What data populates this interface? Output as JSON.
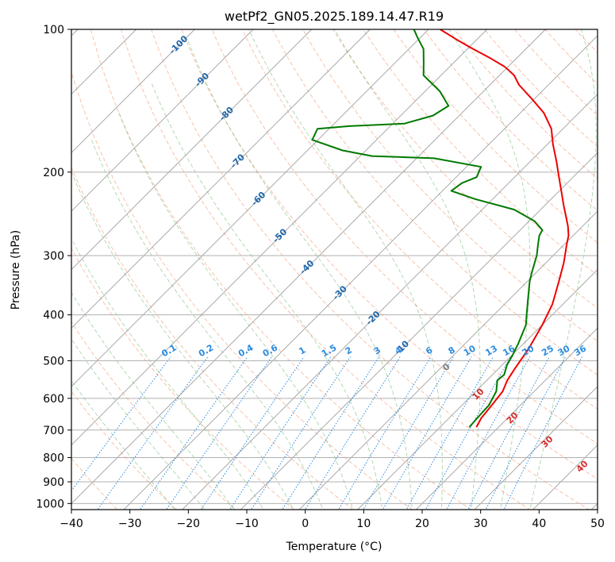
{
  "chart_data": {
    "type": "line",
    "title": "wetPf2_GN05.2025.189.14.47.R19",
    "xlabel": "Temperature (°C)",
    "ylabel": "Pressure (hPa)",
    "xlim": [
      -40,
      50
    ],
    "ylim": [
      1030,
      100
    ],
    "y_scale": "log",
    "grid": true,
    "x_ticks": [
      -40,
      -30,
      -20,
      -10,
      0,
      10,
      20,
      30,
      40,
      50
    ],
    "y_ticks": [
      100,
      200,
      300,
      400,
      500,
      600,
      700,
      800,
      900,
      1000
    ],
    "skew_degrees": 45,
    "series": [
      {
        "color": "#ee0000",
        "points": [
          [
            16.2,
            690
          ],
          [
            15.5,
            660
          ],
          [
            15.1,
            620
          ],
          [
            14.6,
            580
          ],
          [
            13.5,
            550
          ],
          [
            12.8,
            520
          ],
          [
            11.7,
            470
          ],
          [
            10.0,
            420
          ],
          [
            8.2,
            380
          ],
          [
            5.4,
            340
          ],
          [
            3.0,
            310
          ],
          [
            0.5,
            285
          ],
          [
            -0.8,
            272
          ],
          [
            -2.5,
            260
          ],
          [
            -4.5,
            248
          ],
          [
            -6.8,
            235
          ],
          [
            -9.5,
            220
          ],
          [
            -12.4,
            205
          ],
          [
            -15.5,
            190
          ],
          [
            -19.0,
            175
          ],
          [
            -22.0,
            162
          ],
          [
            -26.0,
            150
          ],
          [
            -30.5,
            140
          ],
          [
            -35.0,
            131
          ],
          [
            -37.5,
            125
          ],
          [
            -40.5,
            120
          ],
          [
            -44.5,
            115
          ],
          [
            -49.0,
            110
          ],
          [
            -53.5,
            105
          ],
          [
            -58.0,
            100
          ]
        ]
      },
      {
        "color": "#007a00",
        "points": [
          [
            15.0,
            690
          ],
          [
            14.8,
            660
          ],
          [
            14.6,
            620
          ],
          [
            13.5,
            580
          ],
          [
            11.8,
            550
          ],
          [
            12.0,
            535
          ],
          [
            10.8,
            510
          ],
          [
            10.2,
            490
          ],
          [
            9.1,
            460
          ],
          [
            7.2,
            420
          ],
          [
            5.6,
            400
          ],
          [
            3.1,
            370
          ],
          [
            0.4,
            340
          ],
          [
            -0.8,
            325
          ],
          [
            -2.8,
            300
          ],
          [
            -4.4,
            285
          ],
          [
            -5.8,
            272
          ],
          [
            -6.2,
            265
          ],
          [
            -9.0,
            254
          ],
          [
            -14.5,
            240
          ],
          [
            -23.0,
            228
          ],
          [
            -28.5,
            219
          ],
          [
            -28.0,
            211
          ],
          [
            -26.5,
            205
          ],
          [
            -27.5,
            195
          ],
          [
            -37.0,
            187
          ],
          [
            -48.0,
            185
          ],
          [
            -54.0,
            180
          ],
          [
            -61.0,
            171
          ],
          [
            -62.0,
            162
          ],
          [
            -57.0,
            160
          ],
          [
            -48.0,
            158
          ],
          [
            -44.5,
            152
          ],
          [
            -43.5,
            145
          ],
          [
            -47.5,
            135
          ],
          [
            -53.0,
            125
          ],
          [
            -55.0,
            118
          ],
          [
            -57.5,
            110
          ],
          [
            -60.5,
            104
          ],
          [
            -62.5,
            100
          ]
        ]
      }
    ],
    "dry_adiabats_label": "",
    "isotherm_labels": [
      "-100",
      "-90",
      "-80",
      "-70",
      "-60",
      "-50",
      "-40",
      "-30",
      "-20",
      "-10"
    ],
    "mixing_ratio_labels": [
      "0.1",
      "0.2",
      "0.4",
      "0.6",
      "1",
      "1.5",
      "2",
      "3",
      "4",
      "6",
      "8",
      "10",
      "13",
      "16",
      "20",
      "25",
      "30",
      "36"
    ],
    "moist_adiabat_labels": [
      "0",
      "10",
      "20",
      "30",
      "40"
    ]
  }
}
